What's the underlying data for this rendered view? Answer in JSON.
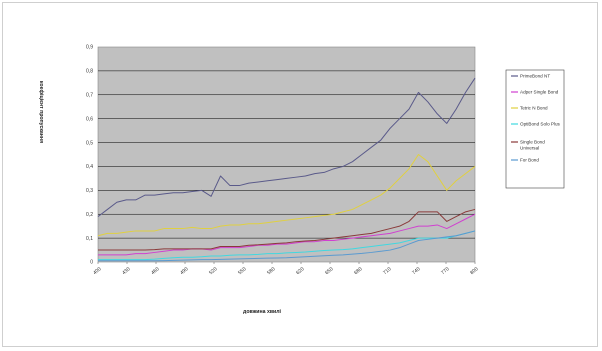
{
  "chart_data": {
    "type": "line",
    "title": "",
    "xlabel": "довжина хвилі",
    "ylabel": "коефіцієнт пропускання",
    "xlim": [
      400,
      800
    ],
    "ylim": [
      0,
      0.9
    ],
    "x_ticks": [
      "400",
      "430",
      "460",
      "490",
      "520",
      "550",
      "580",
      "620",
      "650",
      "680",
      "710",
      "740",
      "770",
      "800"
    ],
    "y_ticks": [
      "0",
      "0,1",
      "0,2",
      "0,3",
      "0,4",
      "0,5",
      "0,6",
      "0,7",
      "0,8",
      "0,9"
    ],
    "grid": true,
    "legend_position": "right",
    "x": [
      400,
      410,
      420,
      430,
      440,
      450,
      460,
      470,
      480,
      490,
      500,
      510,
      520,
      530,
      540,
      550,
      560,
      570,
      580,
      590,
      600,
      610,
      620,
      630,
      640,
      650,
      660,
      670,
      680,
      690,
      700,
      710,
      720,
      730,
      740,
      750,
      760,
      770,
      780,
      790,
      800
    ],
    "series": [
      {
        "name": "PrimeBond NT",
        "color": "#5a5a8a",
        "values": [
          0.19,
          0.22,
          0.25,
          0.26,
          0.26,
          0.28,
          0.28,
          0.285,
          0.29,
          0.29,
          0.295,
          0.3,
          0.275,
          0.36,
          0.32,
          0.32,
          0.33,
          0.335,
          0.34,
          0.345,
          0.35,
          0.355,
          0.36,
          0.37,
          0.375,
          0.39,
          0.4,
          0.42,
          0.45,
          0.48,
          0.51,
          0.56,
          0.6,
          0.64,
          0.71,
          0.67,
          0.62,
          0.58,
          0.64,
          0.71,
          0.77
        ]
      },
      {
        "name": "Adper Single Bond",
        "color": "#d040d0",
        "values": [
          0.03,
          0.03,
          0.03,
          0.03,
          0.035,
          0.035,
          0.04,
          0.045,
          0.05,
          0.05,
          0.055,
          0.055,
          0.05,
          0.06,
          0.06,
          0.06,
          0.065,
          0.07,
          0.07,
          0.075,
          0.075,
          0.08,
          0.085,
          0.085,
          0.09,
          0.09,
          0.095,
          0.1,
          0.105,
          0.11,
          0.115,
          0.12,
          0.13,
          0.14,
          0.15,
          0.15,
          0.155,
          0.14,
          0.16,
          0.18,
          0.2
        ]
      },
      {
        "name": "Tetric N Bond",
        "color": "#e0d040",
        "values": [
          0.11,
          0.12,
          0.12,
          0.125,
          0.13,
          0.13,
          0.13,
          0.14,
          0.14,
          0.14,
          0.145,
          0.14,
          0.14,
          0.15,
          0.155,
          0.155,
          0.16,
          0.16,
          0.165,
          0.17,
          0.175,
          0.18,
          0.185,
          0.19,
          0.195,
          0.2,
          0.21,
          0.22,
          0.24,
          0.26,
          0.28,
          0.31,
          0.35,
          0.39,
          0.45,
          0.42,
          0.36,
          0.3,
          0.34,
          0.37,
          0.4
        ]
      },
      {
        "name": "OptiBond Solo Plus",
        "color": "#40d8e0",
        "values": [
          0.01,
          0.01,
          0.01,
          0.01,
          0.01,
          0.01,
          0.012,
          0.015,
          0.018,
          0.02,
          0.02,
          0.022,
          0.025,
          0.025,
          0.028,
          0.03,
          0.03,
          0.032,
          0.035,
          0.035,
          0.038,
          0.04,
          0.042,
          0.045,
          0.048,
          0.05,
          0.052,
          0.055,
          0.06,
          0.065,
          0.07,
          0.075,
          0.08,
          0.09,
          0.1,
          0.1,
          0.1,
          0.1,
          0.11,
          0.12,
          0.13
        ]
      },
      {
        "name": "Single Bond Universal",
        "color": "#8a3a3a",
        "values": [
          0.05,
          0.05,
          0.05,
          0.05,
          0.05,
          0.05,
          0.052,
          0.055,
          0.055,
          0.055,
          0.055,
          0.055,
          0.055,
          0.065,
          0.065,
          0.065,
          0.07,
          0.072,
          0.075,
          0.078,
          0.08,
          0.085,
          0.088,
          0.09,
          0.095,
          0.1,
          0.105,
          0.11,
          0.115,
          0.12,
          0.13,
          0.14,
          0.15,
          0.17,
          0.21,
          0.21,
          0.21,
          0.17,
          0.19,
          0.21,
          0.22
        ]
      },
      {
        "name": "For Bond",
        "color": "#5a9ad0",
        "values": [
          0.005,
          0.005,
          0.005,
          0.005,
          0.005,
          0.005,
          0.005,
          0.006,
          0.007,
          0.008,
          0.009,
          0.01,
          0.01,
          0.011,
          0.012,
          0.013,
          0.014,
          0.015,
          0.016,
          0.017,
          0.018,
          0.02,
          0.022,
          0.024,
          0.026,
          0.028,
          0.03,
          0.033,
          0.036,
          0.04,
          0.045,
          0.05,
          0.06,
          0.075,
          0.09,
          0.095,
          0.1,
          0.105,
          0.11,
          0.12,
          0.13
        ]
      }
    ],
    "legend": [
      {
        "label": "PrimeBond NT",
        "color": "#5a5a8a"
      },
      {
        "label": "Adper Single Bond",
        "color": "#d040d0"
      },
      {
        "label": "Tetric N Bond",
        "color": "#e0d040"
      },
      {
        "label": "OptiBond Solo Plus",
        "color": "#40d8e0"
      },
      {
        "label": "Single Bond",
        "label2": "Universal",
        "color": "#8a3a3a"
      },
      {
        "label": "For Bond",
        "color": "#5a9ad0"
      }
    ],
    "plot_background": "#c0c0c0"
  }
}
